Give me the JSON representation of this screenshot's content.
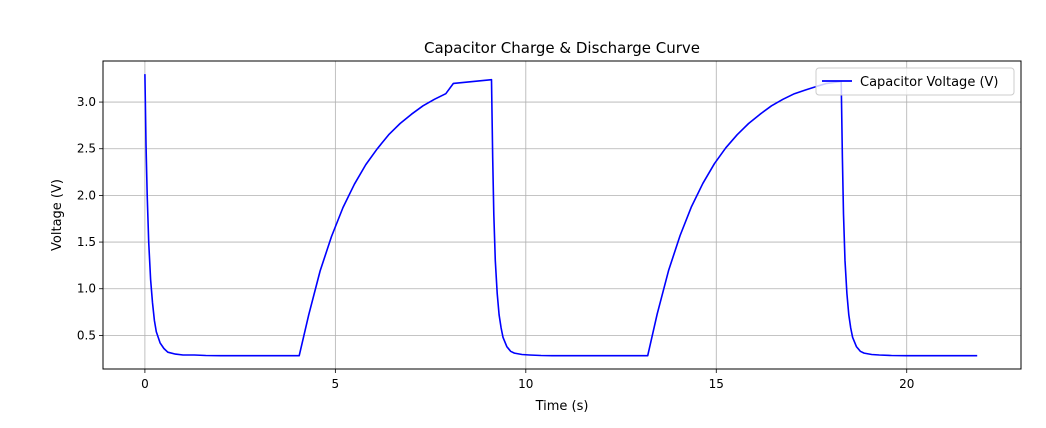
{
  "chart_data": {
    "type": "line",
    "title": "Capacitor Charge & Discharge Curve",
    "xlabel": "Time (s)",
    "ylabel": "Voltage (V)",
    "xlim": [
      -1.1,
      23.0
    ],
    "ylim": [
      0.14,
      3.44
    ],
    "xticks": [
      0,
      5,
      10,
      15,
      20
    ],
    "xtick_labels": [
      "0",
      "5",
      "10",
      "15",
      "20"
    ],
    "yticks": [
      0.5,
      1.0,
      1.5,
      2.0,
      2.5,
      3.0
    ],
    "ytick_labels": [
      "0.5",
      "1.0",
      "1.5",
      "2.0",
      "2.5",
      "3.0"
    ],
    "grid": true,
    "legend_position": "top-right",
    "colors": {
      "series": "#0000ff",
      "grid": "#b0b0b0"
    },
    "series": [
      {
        "name": "Capacitor Voltage (V)",
        "x": [
          0.0,
          0.03,
          0.06,
          0.1,
          0.15,
          0.2,
          0.25,
          0.3,
          0.4,
          0.5,
          0.6,
          0.8,
          1.0,
          1.3,
          1.6,
          2.0,
          3.0,
          4.05,
          4.3,
          4.6,
          4.9,
          5.2,
          5.5,
          5.8,
          6.1,
          6.4,
          6.7,
          7.0,
          7.3,
          7.6,
          7.9,
          8.1,
          9.1,
          9.13,
          9.16,
          9.2,
          9.25,
          9.3,
          9.35,
          9.4,
          9.5,
          9.6,
          9.7,
          9.9,
          10.1,
          10.4,
          10.7,
          11.0,
          12.0,
          13.2,
          13.45,
          13.75,
          14.05,
          14.35,
          14.65,
          14.95,
          15.25,
          15.55,
          15.85,
          16.15,
          16.45,
          16.75,
          17.05,
          17.35,
          17.65,
          17.9,
          18.28,
          18.31,
          18.34,
          18.38,
          18.43,
          18.48,
          18.53,
          18.58,
          18.68,
          18.78,
          18.88,
          19.08,
          19.28,
          19.6,
          20.0,
          21.0,
          21.85
        ],
        "y": [
          3.3,
          2.55,
          2.0,
          1.5,
          1.1,
          0.85,
          0.66,
          0.54,
          0.42,
          0.36,
          0.32,
          0.3,
          0.29,
          0.29,
          0.285,
          0.283,
          0.283,
          0.283,
          0.72,
          1.19,
          1.56,
          1.87,
          2.12,
          2.33,
          2.5,
          2.65,
          2.77,
          2.87,
          2.96,
          3.03,
          3.09,
          3.2,
          3.24,
          2.4,
          1.8,
          1.3,
          0.95,
          0.72,
          0.58,
          0.48,
          0.38,
          0.33,
          0.31,
          0.295,
          0.29,
          0.285,
          0.283,
          0.283,
          0.283,
          0.283,
          0.73,
          1.2,
          1.57,
          1.88,
          2.13,
          2.34,
          2.51,
          2.65,
          2.77,
          2.87,
          2.96,
          3.03,
          3.09,
          3.13,
          3.17,
          3.2,
          3.22,
          2.4,
          1.8,
          1.3,
          0.95,
          0.72,
          0.58,
          0.48,
          0.38,
          0.33,
          0.31,
          0.295,
          0.29,
          0.285,
          0.283,
          0.283,
          0.283
        ]
      }
    ]
  }
}
